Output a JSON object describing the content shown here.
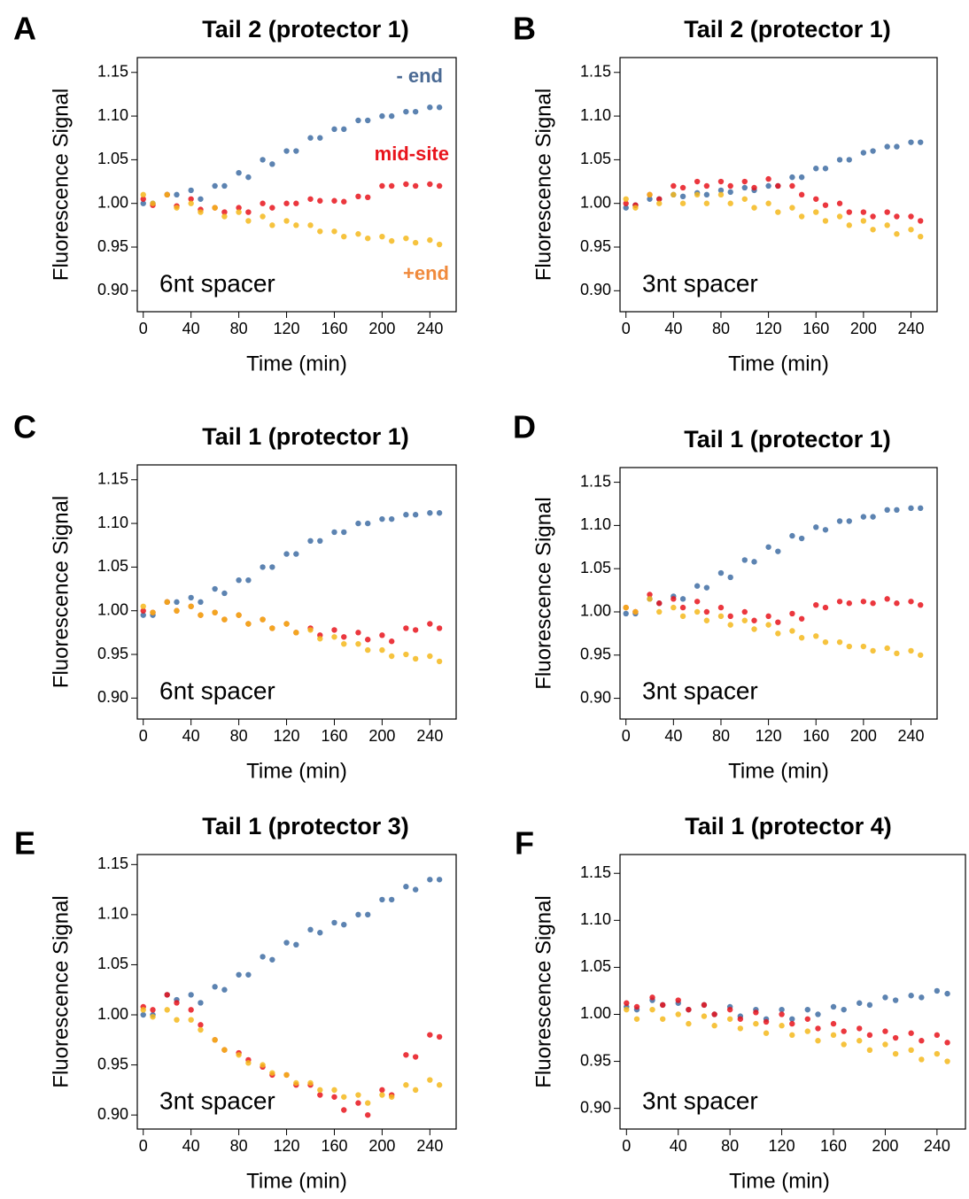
{
  "chart_data": [
    {
      "type": "scatter",
      "panel_label": "A",
      "title": "Tail 2 (protector 1)",
      "x_label": "Time (min)",
      "y_label": "Fluorescence Signal",
      "annotation": "6nt spacer",
      "x": [
        0,
        8,
        20,
        28,
        40,
        48,
        60,
        68,
        80,
        88,
        100,
        108,
        120,
        128,
        140,
        148,
        160,
        168,
        180,
        188,
        200,
        208,
        220,
        228,
        240,
        248
      ],
      "xlim": [
        -5,
        262
      ],
      "xticks": [
        0,
        40,
        80,
        120,
        160,
        200,
        240
      ],
      "ylim": [
        0.876,
        1.167
      ],
      "yticks": [
        {
          "value": 0.9,
          "label": "0.90"
        },
        0.95,
        {
          "value": 1.0,
          "label": "1.00"
        },
        1.05,
        {
          "value": 1.1,
          "label": "1.10"
        },
        1.15
      ],
      "series": [
        {
          "name": "- end",
          "name_color": "#4a6a94",
          "color": "#3f6da3",
          "values": [
            1.0,
            1.0,
            1.01,
            1.01,
            1.015,
            1.005,
            1.02,
            1.02,
            1.035,
            1.03,
            1.05,
            1.045,
            1.06,
            1.06,
            1.075,
            1.075,
            1.085,
            1.085,
            1.095,
            1.095,
            1.1,
            1.1,
            1.105,
            1.105,
            1.11,
            1.11
          ]
        },
        {
          "name": "mid-site",
          "name_color": "#e8141c",
          "color": "#e8141c",
          "values": [
            1.005,
            0.998,
            1.01,
            0.997,
            1.005,
            0.993,
            0.995,
            0.99,
            0.995,
            0.99,
            1.0,
            0.995,
            1.0,
            1.0,
            1.005,
            1.003,
            1.003,
            1.002,
            1.008,
            1.007,
            1.02,
            1.02,
            1.022,
            1.02,
            1.022,
            1.02
          ]
        },
        {
          "name": "+end",
          "name_color": "#f08a3c",
          "color": "#f5b81c",
          "values": [
            1.01,
            1.0,
            1.01,
            0.995,
            1.0,
            0.99,
            0.995,
            0.985,
            0.99,
            0.98,
            0.985,
            0.975,
            0.98,
            0.975,
            0.975,
            0.968,
            0.968,
            0.962,
            0.965,
            0.96,
            0.962,
            0.957,
            0.96,
            0.955,
            0.958,
            0.953
          ]
        }
      ]
    },
    {
      "type": "scatter",
      "panel_label": "B",
      "title": "Tail 2 (protector 1)",
      "x_label": "Time (min)",
      "y_label": "Fluorescence Signal",
      "annotation": "3nt spacer",
      "x": [
        0,
        8,
        20,
        28,
        40,
        48,
        60,
        68,
        80,
        88,
        100,
        108,
        120,
        128,
        140,
        148,
        160,
        168,
        180,
        188,
        200,
        208,
        220,
        228,
        240,
        248
      ],
      "xlim": [
        -5,
        262
      ],
      "xticks": [
        0,
        40,
        80,
        120,
        160,
        200,
        240
      ],
      "ylim": [
        0.876,
        1.167
      ],
      "yticks": [
        {
          "value": 0.9,
          "label": "0.90"
        },
        0.95,
        {
          "value": 1.0,
          "label": "1.00"
        },
        1.05,
        {
          "value": 1.1,
          "label": "1.10"
        },
        1.15
      ],
      "series": [
        {
          "color": "#3f6da3",
          "values": [
            0.995,
            0.998,
            1.005,
            1.005,
            1.01,
            1.008,
            1.012,
            1.01,
            1.015,
            1.013,
            1.018,
            1.015,
            1.02,
            1.02,
            1.03,
            1.03,
            1.04,
            1.04,
            1.05,
            1.05,
            1.058,
            1.06,
            1.065,
            1.065,
            1.07,
            1.07
          ]
        },
        {
          "color": "#e8141c",
          "values": [
            1.0,
            0.998,
            1.01,
            1.005,
            1.02,
            1.018,
            1.025,
            1.02,
            1.025,
            1.02,
            1.025,
            1.018,
            1.028,
            1.02,
            1.02,
            1.01,
            1.005,
            0.998,
            1.0,
            0.99,
            0.99,
            0.985,
            0.99,
            0.985,
            0.985,
            0.98
          ]
        },
        {
          "color": "#f5b81c",
          "values": [
            1.005,
            0.995,
            1.01,
            1.0,
            1.01,
            1.0,
            1.01,
            1.0,
            1.01,
            1.0,
            1.005,
            0.995,
            1.0,
            0.99,
            0.995,
            0.985,
            0.99,
            0.98,
            0.985,
            0.975,
            0.98,
            0.97,
            0.975,
            0.965,
            0.97,
            0.962
          ]
        }
      ]
    },
    {
      "type": "scatter",
      "panel_label": "C",
      "title": "Tail 1 (protector 1)",
      "x_label": "Time (min)",
      "y_label": "Fluorescence Signal",
      "annotation": "6nt spacer",
      "x": [
        0,
        8,
        20,
        28,
        40,
        48,
        60,
        68,
        80,
        88,
        100,
        108,
        120,
        128,
        140,
        148,
        160,
        168,
        180,
        188,
        200,
        208,
        220,
        228,
        240,
        248
      ],
      "xlim": [
        -5,
        262
      ],
      "xticks": [
        0,
        40,
        80,
        120,
        160,
        200,
        240
      ],
      "ylim": [
        0.876,
        1.167
      ],
      "yticks": [
        {
          "value": 0.9,
          "label": "0.90"
        },
        0.95,
        {
          "value": 1.0,
          "label": "1.00"
        },
        1.05,
        {
          "value": 1.1,
          "label": "1.10"
        },
        1.15
      ],
      "series": [
        {
          "color": "#3f6da3",
          "values": [
            0.995,
            0.995,
            1.01,
            1.01,
            1.015,
            1.01,
            1.025,
            1.02,
            1.035,
            1.035,
            1.05,
            1.05,
            1.065,
            1.065,
            1.08,
            1.08,
            1.09,
            1.09,
            1.1,
            1.1,
            1.105,
            1.105,
            1.11,
            1.11,
            1.112,
            1.112
          ]
        },
        {
          "color": "#e8141c",
          "values": [
            1.0,
            0.998,
            1.01,
            1.0,
            1.005,
            0.995,
            0.998,
            0.99,
            0.995,
            0.985,
            0.99,
            0.98,
            0.985,
            0.975,
            0.98,
            0.972,
            0.978,
            0.97,
            0.975,
            0.967,
            0.972,
            0.965,
            0.98,
            0.978,
            0.985,
            0.98
          ]
        },
        {
          "color": "#f5b81c",
          "values": [
            1.005,
            0.998,
            1.01,
            1.0,
            1.005,
            0.995,
            0.998,
            0.99,
            0.995,
            0.985,
            0.99,
            0.98,
            0.985,
            0.975,
            0.978,
            0.968,
            0.97,
            0.962,
            0.962,
            0.955,
            0.955,
            0.948,
            0.95,
            0.945,
            0.948,
            0.942
          ]
        }
      ]
    },
    {
      "type": "scatter",
      "panel_label": "D",
      "title": "Tail 1 (protector 1)",
      "x_label": "Time (min)",
      "y_label": "Fluorescence Signal",
      "annotation": "3nt spacer",
      "x": [
        0,
        8,
        20,
        28,
        40,
        48,
        60,
        68,
        80,
        88,
        100,
        108,
        120,
        128,
        140,
        148,
        160,
        168,
        180,
        188,
        200,
        208,
        220,
        228,
        240,
        248
      ],
      "xlim": [
        -5,
        262
      ],
      "xticks": [
        0,
        40,
        80,
        120,
        160,
        200,
        240
      ],
      "ylim": [
        0.876,
        1.167
      ],
      "yticks": [
        {
          "value": 0.9,
          "label": "0.90"
        },
        0.95,
        {
          "value": 1.0,
          "label": "1.00"
        },
        1.05,
        {
          "value": 1.1,
          "label": "1.10"
        },
        1.15
      ],
      "series": [
        {
          "color": "#3f6da3",
          "values": [
            0.998,
            0.998,
            1.015,
            1.01,
            1.018,
            1.015,
            1.03,
            1.028,
            1.045,
            1.04,
            1.06,
            1.058,
            1.075,
            1.07,
            1.088,
            1.085,
            1.098,
            1.095,
            1.105,
            1.105,
            1.11,
            1.11,
            1.118,
            1.118,
            1.12,
            1.12
          ]
        },
        {
          "color": "#e8141c",
          "values": [
            1.005,
            1.0,
            1.02,
            1.01,
            1.015,
            1.005,
            1.012,
            1.0,
            1.005,
            0.995,
            1.0,
            0.99,
            0.995,
            0.988,
            0.998,
            0.992,
            1.008,
            1.005,
            1.012,
            1.01,
            1.012,
            1.01,
            1.015,
            1.01,
            1.012,
            1.008
          ]
        },
        {
          "color": "#f5b81c",
          "values": [
            1.005,
            1.0,
            1.015,
            1.0,
            1.005,
            0.995,
            1.0,
            0.99,
            0.995,
            0.985,
            0.99,
            0.98,
            0.985,
            0.975,
            0.978,
            0.97,
            0.972,
            0.965,
            0.965,
            0.96,
            0.96,
            0.955,
            0.958,
            0.952,
            0.955,
            0.95
          ]
        }
      ]
    },
    {
      "type": "scatter",
      "panel_label": "E",
      "title": "Tail 1 (protector 3)",
      "x_label": "Time (min)",
      "y_label": "Fluorescence Signal",
      "annotation": "3nt spacer",
      "x": [
        0,
        8,
        20,
        28,
        40,
        48,
        60,
        68,
        80,
        88,
        100,
        108,
        120,
        128,
        140,
        148,
        160,
        168,
        180,
        188,
        200,
        208,
        220,
        228,
        240,
        248
      ],
      "xlim": [
        -5,
        262
      ],
      "xticks": [
        0,
        40,
        80,
        120,
        160,
        200,
        240
      ],
      "ylim": [
        0.886,
        1.16
      ],
      "yticks": [
        {
          "value": 0.9,
          "label": "0.90"
        },
        0.95,
        {
          "value": 1.0,
          "label": "1.00"
        },
        1.05,
        {
          "value": 1.1,
          "label": "1.10"
        },
        1.15
      ],
      "series": [
        {
          "color": "#3f6da3",
          "values": [
            1.0,
            1.0,
            1.02,
            1.015,
            1.02,
            1.012,
            1.028,
            1.025,
            1.04,
            1.04,
            1.058,
            1.055,
            1.072,
            1.07,
            1.085,
            1.082,
            1.092,
            1.09,
            1.1,
            1.1,
            1.115,
            1.115,
            1.128,
            1.125,
            1.135,
            1.135
          ]
        },
        {
          "color": "#e8141c",
          "values": [
            1.008,
            1.005,
            1.02,
            1.012,
            1.005,
            0.99,
            0.975,
            0.965,
            0.962,
            0.955,
            0.948,
            0.94,
            0.94,
            0.93,
            0.93,
            0.92,
            0.918,
            0.905,
            0.912,
            0.9,
            0.925,
            0.92,
            0.96,
            0.958,
            0.98,
            0.978
          ]
        },
        {
          "color": "#f5b81c",
          "values": [
            1.005,
            0.998,
            1.005,
            0.995,
            0.995,
            0.985,
            0.975,
            0.965,
            0.96,
            0.952,
            0.95,
            0.942,
            0.94,
            0.932,
            0.932,
            0.925,
            0.925,
            0.918,
            0.92,
            0.912,
            0.92,
            0.918,
            0.93,
            0.925,
            0.935,
            0.93
          ]
        }
      ]
    },
    {
      "type": "scatter",
      "panel_label": "F",
      "title": "Tail 1 (protector 4)",
      "x_label": "Time (min)",
      "y_label": "Fluorescence Signal",
      "annotation": "3nt spacer",
      "x": [
        0,
        8,
        20,
        28,
        40,
        48,
        60,
        68,
        80,
        88,
        100,
        108,
        120,
        128,
        140,
        148,
        160,
        168,
        180,
        188,
        200,
        208,
        220,
        228,
        240,
        248
      ],
      "xlim": [
        -5,
        262
      ],
      "xticks": [
        0,
        40,
        80,
        120,
        160,
        200,
        240
      ],
      "ylim": [
        0.878,
        1.17
      ],
      "yticks": [
        {
          "value": 0.9,
          "label": "0.90"
        },
        0.95,
        {
          "value": 1.0,
          "label": "1.00"
        },
        1.05,
        {
          "value": 1.1,
          "label": "1.10"
        },
        1.15
      ],
      "series": [
        {
          "color": "#3f6da3",
          "values": [
            1.008,
            1.005,
            1.015,
            1.01,
            1.012,
            1.005,
            1.01,
            1.0,
            1.008,
            0.998,
            1.005,
            0.995,
            1.005,
            0.995,
            1.005,
            1.0,
            1.008,
            1.005,
            1.012,
            1.01,
            1.018,
            1.015,
            1.02,
            1.018,
            1.025,
            1.022
          ]
        },
        {
          "color": "#e8141c",
          "values": [
            1.012,
            1.008,
            1.018,
            1.01,
            1.015,
            1.005,
            1.01,
            1.0,
            1.005,
            0.995,
            1.002,
            0.992,
            1.0,
            0.99,
            0.995,
            0.985,
            0.99,
            0.982,
            0.985,
            0.978,
            0.982,
            0.975,
            0.98,
            0.972,
            0.978,
            0.97
          ]
        },
        {
          "color": "#f5b81c",
          "values": [
            1.005,
            0.995,
            1.005,
            0.995,
            1.0,
            0.99,
            0.998,
            0.988,
            0.995,
            0.985,
            0.99,
            0.98,
            0.988,
            0.978,
            0.982,
            0.972,
            0.978,
            0.968,
            0.972,
            0.962,
            0.968,
            0.958,
            0.962,
            0.952,
            0.958,
            0.95
          ]
        }
      ]
    }
  ]
}
